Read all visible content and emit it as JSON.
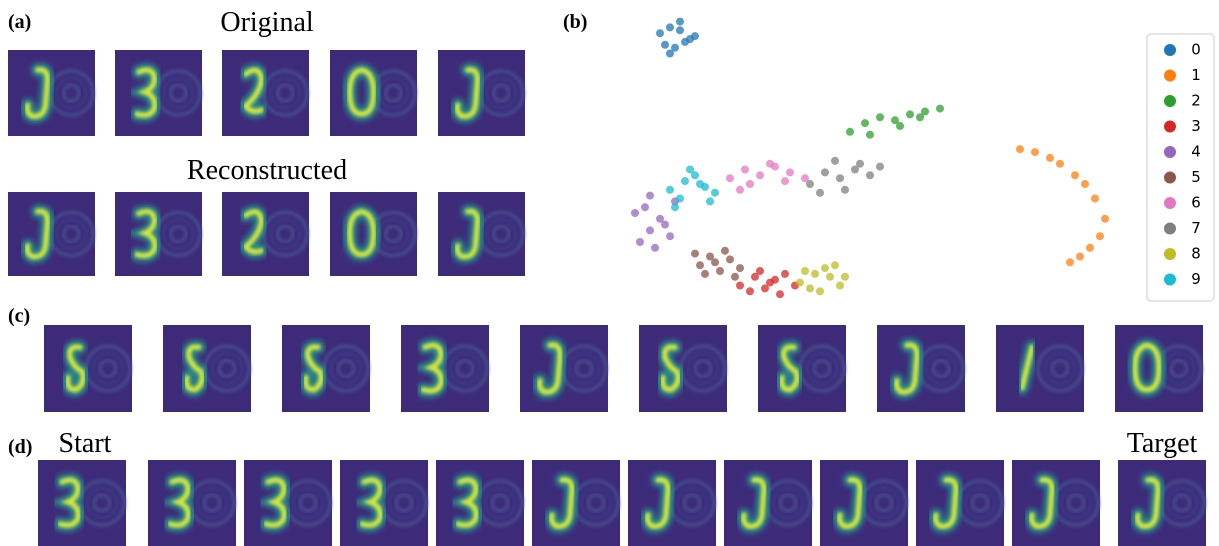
{
  "labels": {
    "a": "(a)",
    "b": "(b)",
    "c": "(c)",
    "d": "(d)",
    "original": "Original",
    "reconstructed": "Reconstructed",
    "start": "Start",
    "target": "Target"
  },
  "chart_data": {
    "type": "scatter",
    "xlim": [
      0,
      100
    ],
    "ylim": [
      0,
      100
    ],
    "legend": "right",
    "series": [
      {
        "name": "0",
        "color": "#1f77b4",
        "x": [
          8,
          10,
          12,
          14,
          9,
          11,
          13,
          15,
          10,
          12
        ],
        "y": [
          92,
          94,
          93,
          90,
          88,
          87,
          89,
          91,
          85,
          96
        ]
      },
      {
        "name": "1",
        "color": "#ff7f0e",
        "x": [
          80,
          83,
          86,
          88,
          91,
          93,
          95,
          97,
          96,
          94,
          92,
          90
        ],
        "y": [
          52,
          51,
          49,
          47,
          43,
          40,
          35,
          28,
          22,
          18,
          15,
          13
        ]
      },
      {
        "name": "2",
        "color": "#2ca02c",
        "x": [
          46,
          49,
          52,
          55,
          58,
          61,
          64,
          50,
          56,
          60
        ],
        "y": [
          58,
          61,
          63,
          62,
          64,
          65,
          66,
          57,
          60,
          63
        ]
      },
      {
        "name": "3",
        "color": "#d62728",
        "x": [
          24,
          27,
          30,
          33,
          35,
          26,
          29,
          32,
          28,
          31
        ],
        "y": [
          5,
          8,
          6,
          9,
          5,
          3,
          4,
          2,
          10,
          7
        ]
      },
      {
        "name": "4",
        "color": "#9467bd",
        "x": [
          4,
          6,
          8,
          10,
          5,
          7,
          9,
          3,
          11,
          6
        ],
        "y": [
          20,
          24,
          28,
          22,
          32,
          18,
          26,
          30,
          34,
          36
        ]
      },
      {
        "name": "5",
        "color": "#8c564b",
        "x": [
          16,
          18,
          20,
          22,
          24,
          17,
          21,
          19,
          23,
          15
        ],
        "y": [
          12,
          15,
          10,
          14,
          11,
          9,
          17,
          13,
          8,
          16
        ]
      },
      {
        "name": "6",
        "color": "#e377c2",
        "x": [
          22,
          25,
          28,
          31,
          34,
          37,
          26,
          30,
          33,
          24
        ],
        "y": [
          42,
          45,
          43,
          46,
          44,
          42,
          40,
          47,
          41,
          38
        ]
      },
      {
        "name": "7",
        "color": "#7f7f7f",
        "x": [
          38,
          41,
          44,
          47,
          50,
          40,
          45,
          48,
          43,
          52
        ],
        "y": [
          40,
          44,
          42,
          45,
          43,
          37,
          38,
          47,
          48,
          46
        ]
      },
      {
        "name": "8",
        "color": "#bcbd22",
        "x": [
          36,
          39,
          42,
          44,
          38,
          41,
          43,
          37,
          40,
          45
        ],
        "y": [
          6,
          9,
          8,
          5,
          4,
          11,
          12,
          10,
          3,
          8
        ]
      },
      {
        "name": "9",
        "color": "#17becf",
        "x": [
          10,
          13,
          16,
          19,
          12,
          15,
          18,
          14,
          17,
          11
        ],
        "y": [
          38,
          41,
          40,
          37,
          35,
          43,
          34,
          45,
          39,
          32
        ]
      }
    ]
  }
}
